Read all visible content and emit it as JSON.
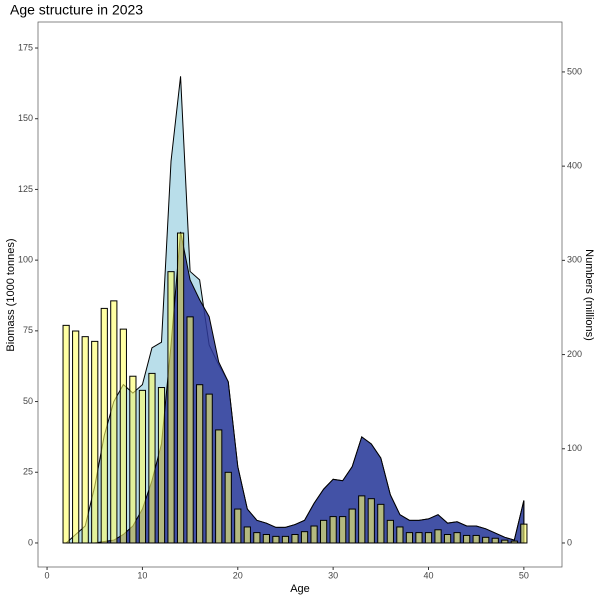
{
  "chart_data": {
    "type": "combo",
    "title": "Age structure in 2023",
    "xlabel": "Age",
    "ylabel": "Biomass (1000 tonnes)",
    "y2label": "Numbers (millions)",
    "x": [
      2,
      3,
      4,
      5,
      6,
      7,
      8,
      9,
      10,
      11,
      12,
      13,
      14,
      15,
      16,
      17,
      18,
      19,
      20,
      21,
      22,
      23,
      24,
      25,
      26,
      27,
      28,
      29,
      30,
      31,
      32,
      33,
      34,
      35,
      36,
      37,
      38,
      39,
      40,
      41,
      42,
      43,
      44,
      45,
      46,
      47,
      48,
      49,
      50
    ],
    "xlim": [
      -0.95,
      54
    ],
    "xticks": [
      0,
      10,
      20,
      30,
      40,
      50
    ],
    "ylim": [
      -8.5,
      184.2
    ],
    "yticks": [
      0,
      25,
      50,
      75,
      100,
      125,
      150,
      175
    ],
    "y2lim": [
      -25.5,
      553
    ],
    "y2ticks": [
      0,
      100,
      200,
      300,
      400,
      500
    ],
    "series": [
      {
        "type": "area",
        "color": "#add8e6",
        "values": [
          0,
          3,
          6,
          20,
          38,
          50,
          56,
          53,
          56,
          69,
          71,
          135,
          165,
          96,
          93,
          70,
          63,
          57,
          27,
          12,
          8,
          7,
          5.5,
          5.5,
          6.5,
          8,
          14,
          19,
          22.5,
          22,
          27,
          37.5,
          35,
          30,
          17,
          10,
          8,
          8,
          8.5,
          10,
          7,
          7.5,
          6,
          6,
          5,
          3.5,
          2,
          1,
          15
        ]
      },
      {
        "type": "area",
        "color": "#2e3a9a",
        "values": [
          0,
          0,
          0,
          0,
          0.5,
          1,
          3,
          6,
          12,
          22,
          35,
          70,
          110,
          93,
          86,
          80,
          64,
          57,
          27,
          12,
          8,
          7,
          5.5,
          5.5,
          6.5,
          8,
          14,
          19,
          22.5,
          22,
          27,
          37.5,
          35,
          30,
          17,
          10,
          8,
          8,
          8.5,
          10,
          7,
          7.5,
          6,
          6,
          5,
          3.5,
          2,
          1,
          15
        ]
      },
      {
        "type": "bar",
        "axis": "y2",
        "color": "#ffff66",
        "values": [
          231,
          225,
          219,
          214,
          249,
          257,
          227,
          177,
          162,
          180,
          165,
          288,
          329,
          240,
          168,
          158,
          120,
          75,
          36,
          17,
          11,
          9,
          7,
          7,
          9,
          12,
          18,
          24,
          28,
          28,
          36,
          50,
          47,
          41,
          24,
          17,
          11,
          11,
          11,
          14,
          9,
          11,
          8,
          8,
          6,
          5,
          3,
          2,
          20
        ]
      }
    ]
  }
}
